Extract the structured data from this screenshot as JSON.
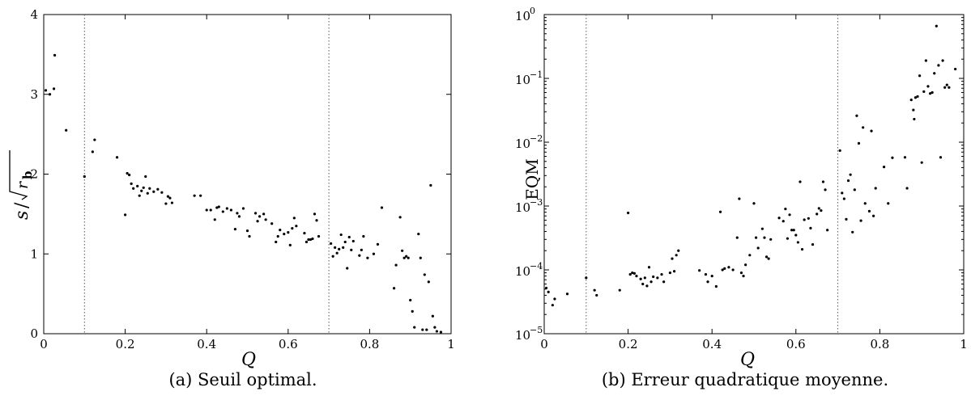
{
  "chart_data": [
    {
      "type": "scatter",
      "title": "",
      "xlabel": "Q",
      "ylabel": "s/√rb",
      "ylabel_parts": {
        "num": "s",
        "slash": "/",
        "radicand": "r",
        "sub": "b"
      },
      "xlim": [
        0,
        1
      ],
      "ylim": [
        0,
        4
      ],
      "xticks": [
        0,
        0.2,
        0.4,
        0.6,
        0.8,
        1
      ],
      "xtick_labels": [
        "0",
        "0.2",
        "0.4",
        "0.6",
        "0.8",
        "1"
      ],
      "yticks": [
        0,
        1,
        2,
        3,
        4
      ],
      "ytick_labels": [
        "0",
        "1",
        "2",
        "3",
        "4"
      ],
      "vlines": [
        0.1,
        0.7
      ],
      "grid": false,
      "caption": "(a) Seuil optimal.",
      "points": [
        [
          0.005,
          3.05
        ],
        [
          0.015,
          3.0
        ],
        [
          0.025,
          3.07
        ],
        [
          0.027,
          3.49
        ],
        [
          0.055,
          2.55
        ],
        [
          0.1,
          1.97
        ],
        [
          0.12,
          2.28
        ],
        [
          0.125,
          2.43
        ],
        [
          0.18,
          2.21
        ],
        [
          0.2,
          1.49
        ],
        [
          0.205,
          2.01
        ],
        [
          0.21,
          1.99
        ],
        [
          0.215,
          1.88
        ],
        [
          0.22,
          1.82
        ],
        [
          0.23,
          1.85
        ],
        [
          0.235,
          1.73
        ],
        [
          0.24,
          1.79
        ],
        [
          0.245,
          1.83
        ],
        [
          0.25,
          1.97
        ],
        [
          0.255,
          1.76
        ],
        [
          0.26,
          1.82
        ],
        [
          0.27,
          1.78
        ],
        [
          0.28,
          1.81
        ],
        [
          0.29,
          1.77
        ],
        [
          0.3,
          1.63
        ],
        [
          0.305,
          1.72
        ],
        [
          0.31,
          1.7
        ],
        [
          0.315,
          1.64
        ],
        [
          0.37,
          1.73
        ],
        [
          0.385,
          1.73
        ],
        [
          0.4,
          1.55
        ],
        [
          0.41,
          1.55
        ],
        [
          0.42,
          1.43
        ],
        [
          0.425,
          1.58
        ],
        [
          0.43,
          1.59
        ],
        [
          0.44,
          1.53
        ],
        [
          0.45,
          1.57
        ],
        [
          0.46,
          1.55
        ],
        [
          0.47,
          1.31
        ],
        [
          0.475,
          1.51
        ],
        [
          0.48,
          1.47
        ],
        [
          0.49,
          1.57
        ],
        [
          0.5,
          1.29
        ],
        [
          0.505,
          1.22
        ],
        [
          0.52,
          1.51
        ],
        [
          0.525,
          1.41
        ],
        [
          0.53,
          1.47
        ],
        [
          0.54,
          1.5
        ],
        [
          0.545,
          1.43
        ],
        [
          0.56,
          1.38
        ],
        [
          0.57,
          1.15
        ],
        [
          0.575,
          1.22
        ],
        [
          0.58,
          1.3
        ],
        [
          0.59,
          1.25
        ],
        [
          0.6,
          1.27
        ],
        [
          0.605,
          1.11
        ],
        [
          0.61,
          1.32
        ],
        [
          0.615,
          1.45
        ],
        [
          0.62,
          1.35
        ],
        [
          0.64,
          1.26
        ],
        [
          0.645,
          1.15
        ],
        [
          0.65,
          1.18
        ],
        [
          0.655,
          1.18
        ],
        [
          0.66,
          1.19
        ],
        [
          0.665,
          1.5
        ],
        [
          0.67,
          1.42
        ],
        [
          0.675,
          1.22
        ],
        [
          0.705,
          1.13
        ],
        [
          0.71,
          0.97
        ],
        [
          0.715,
          1.08
        ],
        [
          0.72,
          1.01
        ],
        [
          0.725,
          1.06
        ],
        [
          0.73,
          1.24
        ],
        [
          0.735,
          1.08
        ],
        [
          0.74,
          1.15
        ],
        [
          0.745,
          0.82
        ],
        [
          0.75,
          1.21
        ],
        [
          0.755,
          1.05
        ],
        [
          0.76,
          1.16
        ],
        [
          0.775,
          0.98
        ],
        [
          0.78,
          1.05
        ],
        [
          0.785,
          1.22
        ],
        [
          0.795,
          0.95
        ],
        [
          0.81,
          1.0
        ],
        [
          0.82,
          1.12
        ],
        [
          0.83,
          1.58
        ],
        [
          0.86,
          0.57
        ],
        [
          0.865,
          0.86
        ],
        [
          0.875,
          1.46
        ],
        [
          0.88,
          1.04
        ],
        [
          0.885,
          0.95
        ],
        [
          0.89,
          0.97
        ],
        [
          0.895,
          0.95
        ],
        [
          0.9,
          0.42
        ],
        [
          0.905,
          0.28
        ],
        [
          0.91,
          0.08
        ],
        [
          0.92,
          1.25
        ],
        [
          0.925,
          0.95
        ],
        [
          0.93,
          0.05
        ],
        [
          0.935,
          0.74
        ],
        [
          0.94,
          0.05
        ],
        [
          0.945,
          0.65
        ],
        [
          0.95,
          1.86
        ],
        [
          0.955,
          0.22
        ],
        [
          0.96,
          0.08
        ],
        [
          0.965,
          0.03
        ],
        [
          0.975,
          0.02
        ]
      ]
    },
    {
      "type": "scatter",
      "title": "",
      "xlabel": "Q",
      "ylabel": "EQM",
      "yscale": "log",
      "xlim": [
        0,
        1
      ],
      "ylim": [
        1e-05,
        1
      ],
      "xticks": [
        0,
        0.2,
        0.4,
        0.6,
        0.8,
        1
      ],
      "xtick_labels": [
        "0",
        "0.2",
        "0.4",
        "0.6",
        "0.8",
        "1"
      ],
      "yticks": [
        1e-05,
        0.0001,
        0.001,
        0.01,
        0.1,
        1
      ],
      "ytick_labels": [
        {
          "base": "10",
          "exp": "−5"
        },
        {
          "base": "10",
          "exp": "−4"
        },
        {
          "base": "10",
          "exp": "−3"
        },
        {
          "base": "10",
          "exp": "−2"
        },
        {
          "base": "10",
          "exp": "−1"
        },
        {
          "base": "10",
          "exp": "0"
        }
      ],
      "vlines": [
        0.1,
        0.7
      ],
      "grid": false,
      "caption": "(b) Erreur quadratique moyenne.",
      "points": [
        [
          0.005,
          5.2e-05
        ],
        [
          0.01,
          4.5e-05
        ],
        [
          0.02,
          2.8e-05
        ],
        [
          0.025,
          3.5e-05
        ],
        [
          0.055,
          4.2e-05
        ],
        [
          0.1,
          7.5e-05
        ],
        [
          0.12,
          4.8e-05
        ],
        [
          0.125,
          4e-05
        ],
        [
          0.18,
          4.8e-05
        ],
        [
          0.2,
          0.00078
        ],
        [
          0.205,
          8.5e-05
        ],
        [
          0.21,
          9e-05
        ],
        [
          0.215,
          8.8e-05
        ],
        [
          0.22,
          8e-05
        ],
        [
          0.23,
          7.2e-05
        ],
        [
          0.235,
          6e-05
        ],
        [
          0.24,
          7.5e-05
        ],
        [
          0.245,
          5.6e-05
        ],
        [
          0.25,
          0.00011
        ],
        [
          0.255,
          6.5e-05
        ],
        [
          0.26,
          7.8e-05
        ],
        [
          0.27,
          7.5e-05
        ],
        [
          0.28,
          8.5e-05
        ],
        [
          0.285,
          6.5e-05
        ],
        [
          0.3,
          9e-05
        ],
        [
          0.305,
          0.00015
        ],
        [
          0.31,
          9.5e-05
        ],
        [
          0.315,
          0.00017
        ],
        [
          0.32,
          0.0002
        ],
        [
          0.37,
          9.8e-05
        ],
        [
          0.385,
          8.5e-05
        ],
        [
          0.39,
          6.5e-05
        ],
        [
          0.4,
          8e-05
        ],
        [
          0.41,
          5.5e-05
        ],
        [
          0.42,
          0.00081
        ],
        [
          0.425,
          0.0001
        ],
        [
          0.43,
          0.000105
        ],
        [
          0.44,
          0.00011
        ],
        [
          0.45,
          0.0001
        ],
        [
          0.46,
          0.00032
        ],
        [
          0.465,
          0.0013
        ],
        [
          0.47,
          9e-05
        ],
        [
          0.475,
          8e-05
        ],
        [
          0.48,
          0.00012
        ],
        [
          0.49,
          0.00017
        ],
        [
          0.5,
          0.0011
        ],
        [
          0.505,
          0.00032
        ],
        [
          0.51,
          0.00022
        ],
        [
          0.52,
          0.00044
        ],
        [
          0.525,
          0.00032
        ],
        [
          0.53,
          0.00016
        ],
        [
          0.535,
          0.00015
        ],
        [
          0.54,
          0.0003
        ],
        [
          0.56,
          0.00065
        ],
        [
          0.57,
          0.00058
        ],
        [
          0.575,
          0.0009
        ],
        [
          0.58,
          0.00031
        ],
        [
          0.585,
          0.00073
        ],
        [
          0.59,
          0.00042
        ],
        [
          0.595,
          0.00042
        ],
        [
          0.6,
          0.00035
        ],
        [
          0.605,
          0.00027
        ],
        [
          0.61,
          0.0024
        ],
        [
          0.615,
          0.00021
        ],
        [
          0.62,
          0.00061
        ],
        [
          0.63,
          0.00064
        ],
        [
          0.635,
          0.00045
        ],
        [
          0.64,
          0.00025
        ],
        [
          0.65,
          0.00075
        ],
        [
          0.655,
          0.00092
        ],
        [
          0.66,
          0.00085
        ],
        [
          0.665,
          0.0024
        ],
        [
          0.67,
          0.0018
        ],
        [
          0.675,
          0.00042
        ],
        [
          0.705,
          0.0074
        ],
        [
          0.71,
          0.0016
        ],
        [
          0.715,
          0.0013
        ],
        [
          0.72,
          0.00062
        ],
        [
          0.725,
          0.0025
        ],
        [
          0.73,
          0.0031
        ],
        [
          0.735,
          0.00039
        ],
        [
          0.74,
          0.0018
        ],
        [
          0.745,
          0.026
        ],
        [
          0.75,
          0.0096
        ],
        [
          0.755,
          0.00059
        ],
        [
          0.76,
          0.017
        ],
        [
          0.765,
          0.0011
        ],
        [
          0.775,
          0.00083
        ],
        [
          0.78,
          0.015
        ],
        [
          0.785,
          0.0007
        ],
        [
          0.79,
          0.0019
        ],
        [
          0.81,
          0.0041
        ],
        [
          0.82,
          0.0011
        ],
        [
          0.83,
          0.0057
        ],
        [
          0.86,
          0.0058
        ],
        [
          0.865,
          0.0019
        ],
        [
          0.875,
          0.046
        ],
        [
          0.88,
          0.032
        ],
        [
          0.882,
          0.023
        ],
        [
          0.885,
          0.05
        ],
        [
          0.89,
          0.052
        ],
        [
          0.895,
          0.11
        ],
        [
          0.9,
          0.0048
        ],
        [
          0.905,
          0.062
        ],
        [
          0.91,
          0.19
        ],
        [
          0.915,
          0.075
        ],
        [
          0.92,
          0.058
        ],
        [
          0.925,
          0.06
        ],
        [
          0.93,
          0.12
        ],
        [
          0.935,
          0.66
        ],
        [
          0.94,
          0.16
        ],
        [
          0.945,
          0.0058
        ],
        [
          0.95,
          0.19
        ],
        [
          0.955,
          0.072
        ],
        [
          0.96,
          0.079
        ],
        [
          0.965,
          0.072
        ],
        [
          0.98,
          0.14
        ]
      ]
    }
  ]
}
